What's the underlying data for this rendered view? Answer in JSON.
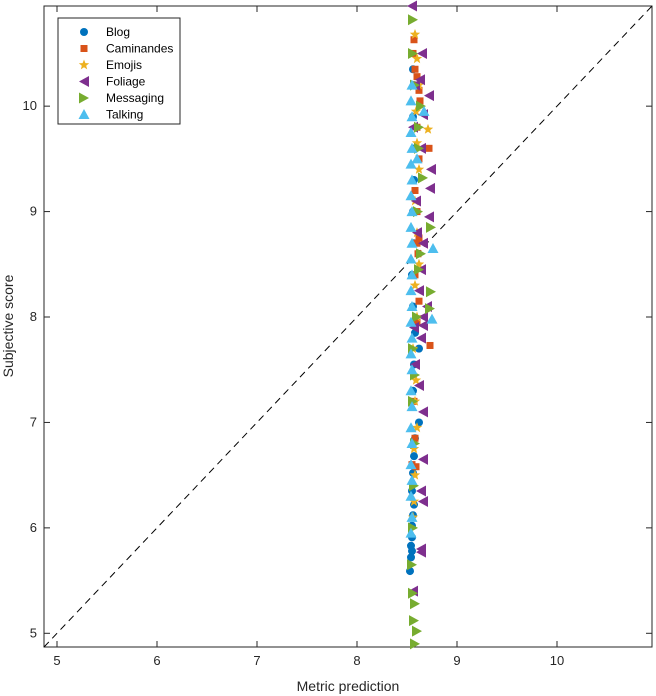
{
  "chart_data": {
    "type": "scatter",
    "title": "",
    "xlabel": "Metric prediction",
    "ylabel": "Subjective score",
    "xlim": [
      4.87,
      10.95
    ],
    "ylim": [
      4.87,
      10.95
    ],
    "xticks": [
      5,
      6,
      7,
      8,
      9,
      10
    ],
    "yticks": [
      5,
      6,
      7,
      8,
      9,
      10
    ],
    "grid": false,
    "legend_position": "top-left",
    "reference_line": {
      "from": [
        4.87,
        4.87
      ],
      "to": [
        10.95,
        10.95
      ],
      "style": "dashed",
      "color": "#000000"
    },
    "series": [
      {
        "name": "Blog",
        "marker": "circle",
        "color": "#0072BD",
        "points": [
          [
            8.53,
            5.59
          ],
          [
            8.54,
            5.72
          ],
          [
            8.55,
            5.78
          ],
          [
            8.54,
            5.83
          ],
          [
            8.55,
            5.91
          ],
          [
            8.55,
            6.02
          ],
          [
            8.56,
            6.12
          ],
          [
            8.57,
            6.22
          ],
          [
            8.55,
            6.35
          ],
          [
            8.56,
            6.52
          ],
          [
            8.57,
            6.68
          ],
          [
            8.58,
            6.85
          ],
          [
            8.62,
            7.0
          ],
          [
            8.56,
            7.3
          ],
          [
            8.57,
            7.55
          ],
          [
            8.58,
            7.85
          ],
          [
            8.62,
            7.7
          ],
          [
            8.56,
            8.1
          ],
          [
            8.55,
            8.4
          ],
          [
            8.57,
            8.7
          ],
          [
            8.56,
            9.0
          ],
          [
            8.57,
            9.3
          ],
          [
            8.58,
            9.6
          ],
          [
            8.56,
            9.9
          ],
          [
            8.57,
            10.2
          ],
          [
            8.56,
            10.35
          ]
        ]
      },
      {
        "name": "Caminandes",
        "marker": "square",
        "color": "#D95319",
        "points": [
          [
            8.55,
            6.6
          ],
          [
            8.59,
            6.58
          ],
          [
            8.58,
            6.85
          ],
          [
            8.57,
            7.2
          ],
          [
            8.6,
            7.95
          ],
          [
            8.62,
            8.15
          ],
          [
            8.58,
            8.4
          ],
          [
            8.61,
            8.6
          ],
          [
            8.6,
            8.7
          ],
          [
            8.62,
            8.75
          ],
          [
            8.6,
            9.0
          ],
          [
            8.58,
            9.2
          ],
          [
            8.62,
            9.5
          ],
          [
            8.72,
            9.6
          ],
          [
            8.6,
            9.8
          ],
          [
            8.63,
            10.05
          ],
          [
            8.6,
            10.2
          ],
          [
            8.58,
            10.35
          ],
          [
            8.62,
            10.15
          ],
          [
            8.56,
            10.5
          ],
          [
            8.57,
            10.63
          ],
          [
            8.73,
            7.73
          ],
          [
            8.6,
            10.28
          ]
        ]
      },
      {
        "name": "Emojis",
        "marker": "star",
        "color": "#EDB120",
        "points": [
          [
            8.56,
            6.1
          ],
          [
            8.57,
            6.25
          ],
          [
            8.58,
            6.5
          ],
          [
            8.57,
            6.75
          ],
          [
            8.6,
            6.95
          ],
          [
            8.58,
            7.2
          ],
          [
            8.59,
            7.4
          ],
          [
            8.56,
            7.7
          ],
          [
            8.6,
            8.0
          ],
          [
            8.58,
            8.3
          ],
          [
            8.62,
            8.5
          ],
          [
            8.6,
            8.8
          ],
          [
            8.58,
            9.1
          ],
          [
            8.62,
            9.4
          ],
          [
            8.6,
            9.65
          ],
          [
            8.71,
            9.78
          ],
          [
            8.59,
            9.95
          ],
          [
            8.62,
            10.2
          ],
          [
            8.6,
            10.45
          ],
          [
            8.58,
            10.68
          ]
        ]
      },
      {
        "name": "Foliage",
        "marker": "triangle-left",
        "color": "#7E2F8E",
        "points": [
          [
            8.56,
            5.4
          ],
          [
            8.64,
            5.8
          ],
          [
            8.64,
            5.77
          ],
          [
            8.66,
            6.25
          ],
          [
            8.64,
            6.35
          ],
          [
            8.66,
            6.65
          ],
          [
            8.66,
            7.1
          ],
          [
            8.62,
            7.35
          ],
          [
            8.58,
            7.55
          ],
          [
            8.64,
            7.8
          ],
          [
            8.66,
            7.92
          ],
          [
            8.66,
            8.0
          ],
          [
            8.7,
            8.1
          ],
          [
            8.62,
            8.25
          ],
          [
            8.64,
            8.45
          ],
          [
            8.66,
            8.7
          ],
          [
            8.72,
            8.95
          ],
          [
            8.73,
            9.22
          ],
          [
            8.74,
            9.4
          ],
          [
            8.64,
            9.6
          ],
          [
            8.66,
            9.92
          ],
          [
            8.72,
            10.1
          ],
          [
            8.63,
            10.25
          ],
          [
            8.65,
            10.5
          ],
          [
            8.58,
            10.2
          ],
          [
            8.56,
            9.8
          ],
          [
            8.59,
            9.1
          ],
          [
            8.6,
            8.8
          ],
          [
            8.57,
            7.9
          ],
          [
            8.55,
            10.95
          ]
        ]
      },
      {
        "name": "Messaging",
        "marker": "triangle-right",
        "color": "#77AC30",
        "points": [
          [
            8.58,
            4.9
          ],
          [
            8.6,
            5.02
          ],
          [
            8.57,
            5.12
          ],
          [
            8.58,
            5.28
          ],
          [
            8.56,
            5.38
          ],
          [
            8.55,
            5.65
          ],
          [
            8.56,
            6.0
          ],
          [
            8.57,
            6.4
          ],
          [
            8.58,
            6.8
          ],
          [
            8.56,
            7.2
          ],
          [
            8.58,
            7.45
          ],
          [
            8.56,
            7.7
          ],
          [
            8.6,
            8.0
          ],
          [
            8.73,
            8.08
          ],
          [
            8.74,
            8.24
          ],
          [
            8.62,
            8.45
          ],
          [
            8.64,
            8.6
          ],
          [
            8.74,
            8.85
          ],
          [
            8.61,
            9.0
          ],
          [
            8.66,
            9.32
          ],
          [
            8.62,
            9.6
          ],
          [
            8.64,
            10.0
          ],
          [
            8.58,
            10.2
          ],
          [
            8.56,
            10.5
          ],
          [
            8.56,
            10.82
          ],
          [
            8.62,
            9.8
          ]
        ]
      },
      {
        "name": "Talking",
        "marker": "triangle-up",
        "color": "#4DBEEE",
        "points": [
          [
            8.54,
            5.95
          ],
          [
            8.55,
            6.1
          ],
          [
            8.54,
            6.3
          ],
          [
            8.55,
            6.45
          ],
          [
            8.54,
            6.6
          ],
          [
            8.55,
            6.8
          ],
          [
            8.54,
            6.95
          ],
          [
            8.55,
            7.15
          ],
          [
            8.54,
            7.3
          ],
          [
            8.55,
            7.5
          ],
          [
            8.54,
            7.65
          ],
          [
            8.55,
            7.8
          ],
          [
            8.54,
            7.95
          ],
          [
            8.55,
            8.1
          ],
          [
            8.54,
            8.25
          ],
          [
            8.55,
            8.4
          ],
          [
            8.54,
            8.55
          ],
          [
            8.55,
            8.7
          ],
          [
            8.54,
            8.85
          ],
          [
            8.55,
            9.0
          ],
          [
            8.54,
            9.15
          ],
          [
            8.55,
            9.3
          ],
          [
            8.54,
            9.45
          ],
          [
            8.55,
            9.6
          ],
          [
            8.54,
            9.75
          ],
          [
            8.55,
            9.9
          ],
          [
            8.54,
            10.05
          ],
          [
            8.55,
            10.2
          ],
          [
            8.76,
            8.65
          ],
          [
            8.75,
            7.98
          ],
          [
            8.67,
            9.95
          ],
          [
            8.6,
            9.5
          ]
        ]
      }
    ]
  }
}
